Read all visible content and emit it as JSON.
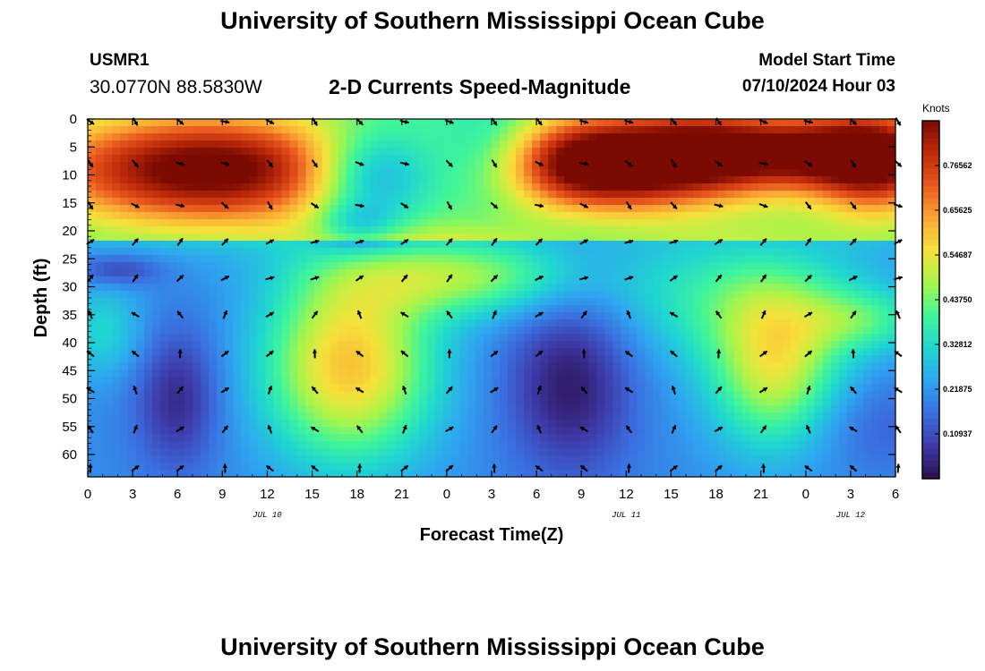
{
  "header": {
    "main_title": "University of Southern Mississippi Ocean Cube",
    "station_id": "USMR1",
    "station_coords": "30.0770N  88.5830W",
    "plot_title": "2-D Currents Speed-Magnitude",
    "model_start_label": "Model Start Time",
    "model_start_time": "07/10/2024 Hour 03"
  },
  "footer": {
    "repeat_title": "University of Southern Mississippi Ocean Cube"
  },
  "chart_data": {
    "type": "heatmap",
    "title": "2-D Currents Speed-Magnitude",
    "xlabel": "Forecast Time(Z)",
    "ylabel": "Depth (ft)",
    "x_tick_labels": [
      "0",
      "3",
      "6",
      "9",
      "12",
      "15",
      "18",
      "21",
      "0",
      "3",
      "6",
      "9",
      "12",
      "15",
      "18",
      "21",
      "0",
      "3",
      "6"
    ],
    "x_forecast_hours": [
      0,
      54
    ],
    "y_ticks": [
      0,
      5,
      10,
      15,
      20,
      25,
      30,
      35,
      40,
      45,
      50,
      55,
      60
    ],
    "ylim": [
      0,
      64
    ],
    "date_labels": [
      {
        "text": "JUL 10",
        "hour": 12
      },
      {
        "text": "JUL 11",
        "hour": 36
      },
      {
        "text": "JUL 12",
        "hour": 51
      }
    ],
    "colorbar": {
      "label": "Knots",
      "tick_labels": [
        "0.76562",
        "0.65625",
        "0.54687",
        "0.43750",
        "0.32812",
        "0.21875",
        "0.10937"
      ],
      "tick_values": [
        0.765625,
        0.65625,
        0.546875,
        0.4375,
        0.328125,
        0.21875,
        0.109375
      ],
      "range": [
        0,
        0.875
      ],
      "colors": [
        "#2b0f4e",
        "#3e3aa8",
        "#3b6fe0",
        "#2ea5f0",
        "#1fd6d0",
        "#3ff59a",
        "#a6f54a",
        "#f5e23a",
        "#fba834",
        "#e9581e",
        "#c02b0a",
        "#7a0a02"
      ]
    },
    "speed_field": {
      "background": 0.2,
      "depth_values_ft": [
        0,
        22
      ],
      "blobs": [
        {
          "hour": 8,
          "depth": 9,
          "sh": 8,
          "sd": 7,
          "v": 0.52
        },
        {
          "hour": 19,
          "depth": 10,
          "sh": 3,
          "sd": 6,
          "v": -0.3
        },
        {
          "hour": 18,
          "depth": 19,
          "sh": 2,
          "sd": 3,
          "v": -0.15
        },
        {
          "hour": 27,
          "depth": 6,
          "sh": 2.5,
          "sd": 7,
          "v": -0.14
        },
        {
          "hour": 34,
          "depth": 8,
          "sh": 4.5,
          "sd": 6,
          "v": 0.6
        },
        {
          "hour": 41,
          "depth": 6,
          "sh": 3.5,
          "sd": 6,
          "v": 0.3
        },
        {
          "hour": 48,
          "depth": 6,
          "sh": 5,
          "sd": 5,
          "v": 0.45
        },
        {
          "hour": 53,
          "depth": 8,
          "sh": 3,
          "sd": 7,
          "v": 0.35
        },
        {
          "hour": 2,
          "depth": 27,
          "sh": 2,
          "sd": 2,
          "v": -0.12
        },
        {
          "hour": 1,
          "depth": 38,
          "sh": 2,
          "sd": 6,
          "v": 0.12
        },
        {
          "hour": 6,
          "depth": 50,
          "sh": 2,
          "sd": 9,
          "v": -0.15
        },
        {
          "hour": 17.5,
          "depth": 44,
          "sh": 4,
          "sd": 12,
          "v": 0.4
        },
        {
          "hour": 25,
          "depth": 28,
          "sh": 6,
          "sd": 5,
          "v": 0.26
        },
        {
          "hour": 32,
          "depth": 48,
          "sh": 3,
          "sd": 10,
          "v": -0.13
        },
        {
          "hour": 33,
          "depth": 40,
          "sh": 3,
          "sd": 20,
          "v": -0.06
        },
        {
          "hour": 40,
          "depth": 38,
          "sh": 6,
          "sd": 14,
          "v": 0.02
        },
        {
          "hour": 44,
          "depth": 32,
          "sh": 6,
          "sd": 8,
          "v": 0.16
        },
        {
          "hour": 46,
          "depth": 45,
          "sh": 3,
          "sd": 10,
          "v": 0.3
        },
        {
          "hour": 52,
          "depth": 36,
          "sh": 3,
          "sd": 4,
          "v": 0.15
        },
        {
          "hour": 53,
          "depth": 55,
          "sh": 4,
          "sd": 6,
          "v": -0.06
        }
      ]
    }
  }
}
